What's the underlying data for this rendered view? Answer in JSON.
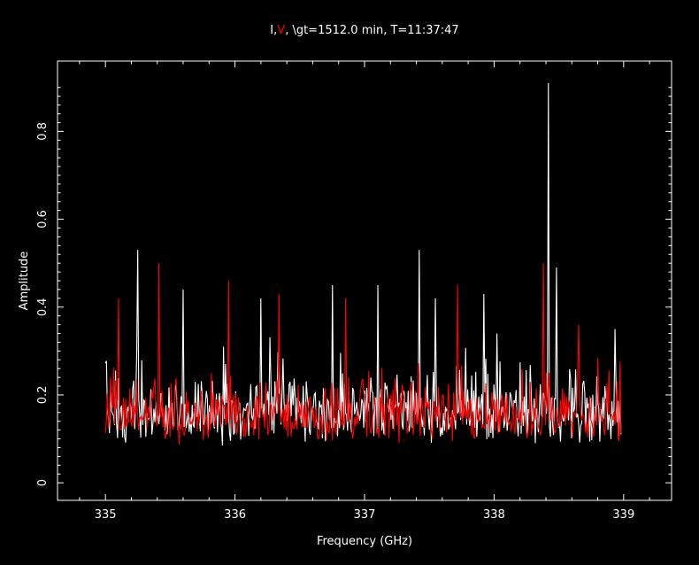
{
  "title": {
    "part1": "I",
    "sep": ",",
    "part2": "V",
    "rest": ", \\gt=1512.0 min, T=11:37:47"
  },
  "colors": {
    "background": "#000000",
    "frame": "#ffffff",
    "I": "#ffffff",
    "V": "#ff0000"
  },
  "chart_data": {
    "type": "line",
    "xlabel": "Frequency (GHz)",
    "ylabel": "Amplitude",
    "xlim": [
      334.63,
      339.37
    ],
    "ylim": [
      -0.04,
      0.96
    ],
    "xticks": [
      335,
      336,
      337,
      338,
      339
    ],
    "xtick_labels": [
      "335",
      "336",
      "337",
      "338",
      "339"
    ],
    "yticks": [
      0,
      0.2,
      0.4,
      0.6,
      0.8
    ],
    "ytick_labels": [
      "0",
      "0.2",
      "0.4",
      "0.6",
      "0.8"
    ],
    "x_range": [
      335.0,
      338.98
    ],
    "n_points": 512,
    "series": [
      {
        "name": "I",
        "color": "#ffffff",
        "baseline": 0.14,
        "noise_spread": 0.09,
        "peaks": [
          {
            "x": 335.25,
            "y": 0.53
          },
          {
            "x": 335.6,
            "y": 0.44
          },
          {
            "x": 336.2,
            "y": 0.42
          },
          {
            "x": 336.75,
            "y": 0.45
          },
          {
            "x": 337.1,
            "y": 0.45
          },
          {
            "x": 337.42,
            "y": 0.53
          },
          {
            "x": 337.55,
            "y": 0.42
          },
          {
            "x": 337.92,
            "y": 0.43
          },
          {
            "x": 338.42,
            "y": 0.91
          },
          {
            "x": 338.48,
            "y": 0.49
          },
          {
            "x": 338.93,
            "y": 0.35
          }
        ]
      },
      {
        "name": "V",
        "color": "#ff0000",
        "baseline": 0.14,
        "noise_spread": 0.08,
        "peaks": [
          {
            "x": 335.1,
            "y": 0.42
          },
          {
            "x": 335.41,
            "y": 0.5
          },
          {
            "x": 335.95,
            "y": 0.46
          },
          {
            "x": 336.34,
            "y": 0.43
          },
          {
            "x": 336.85,
            "y": 0.42
          },
          {
            "x": 337.72,
            "y": 0.45
          },
          {
            "x": 338.38,
            "y": 0.5
          },
          {
            "x": 338.65,
            "y": 0.36
          }
        ]
      }
    ]
  }
}
